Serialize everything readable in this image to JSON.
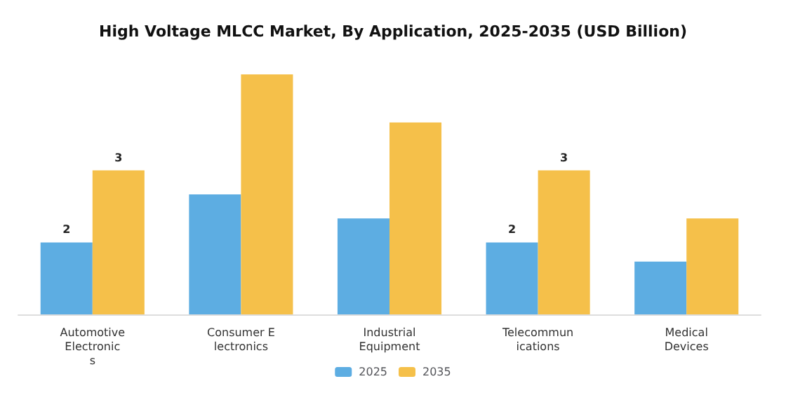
{
  "chart_data": {
    "type": "bar",
    "title": "High Voltage MLCC Market, By Application, 2025-2035 (USD Billion)",
    "categories": [
      "Automotive\nElectronic\ns",
      "Consumer E\nlectronics",
      "Industrial\nEquipment",
      "Telecommun\nications",
      "Medical\nDevices"
    ],
    "series": [
      {
        "name": "2025",
        "color": "#5dade2",
        "values": [
          1.5,
          2.5,
          2.0,
          1.5,
          1.1
        ],
        "value_labels": [
          "2",
          null,
          null,
          "2",
          null
        ]
      },
      {
        "name": "2035",
        "color": "#f5c04a",
        "values": [
          3.0,
          5.0,
          4.0,
          3.0,
          2.0
        ],
        "value_labels": [
          "3",
          null,
          null,
          "3",
          null
        ]
      }
    ],
    "legend": "bottom"
  }
}
